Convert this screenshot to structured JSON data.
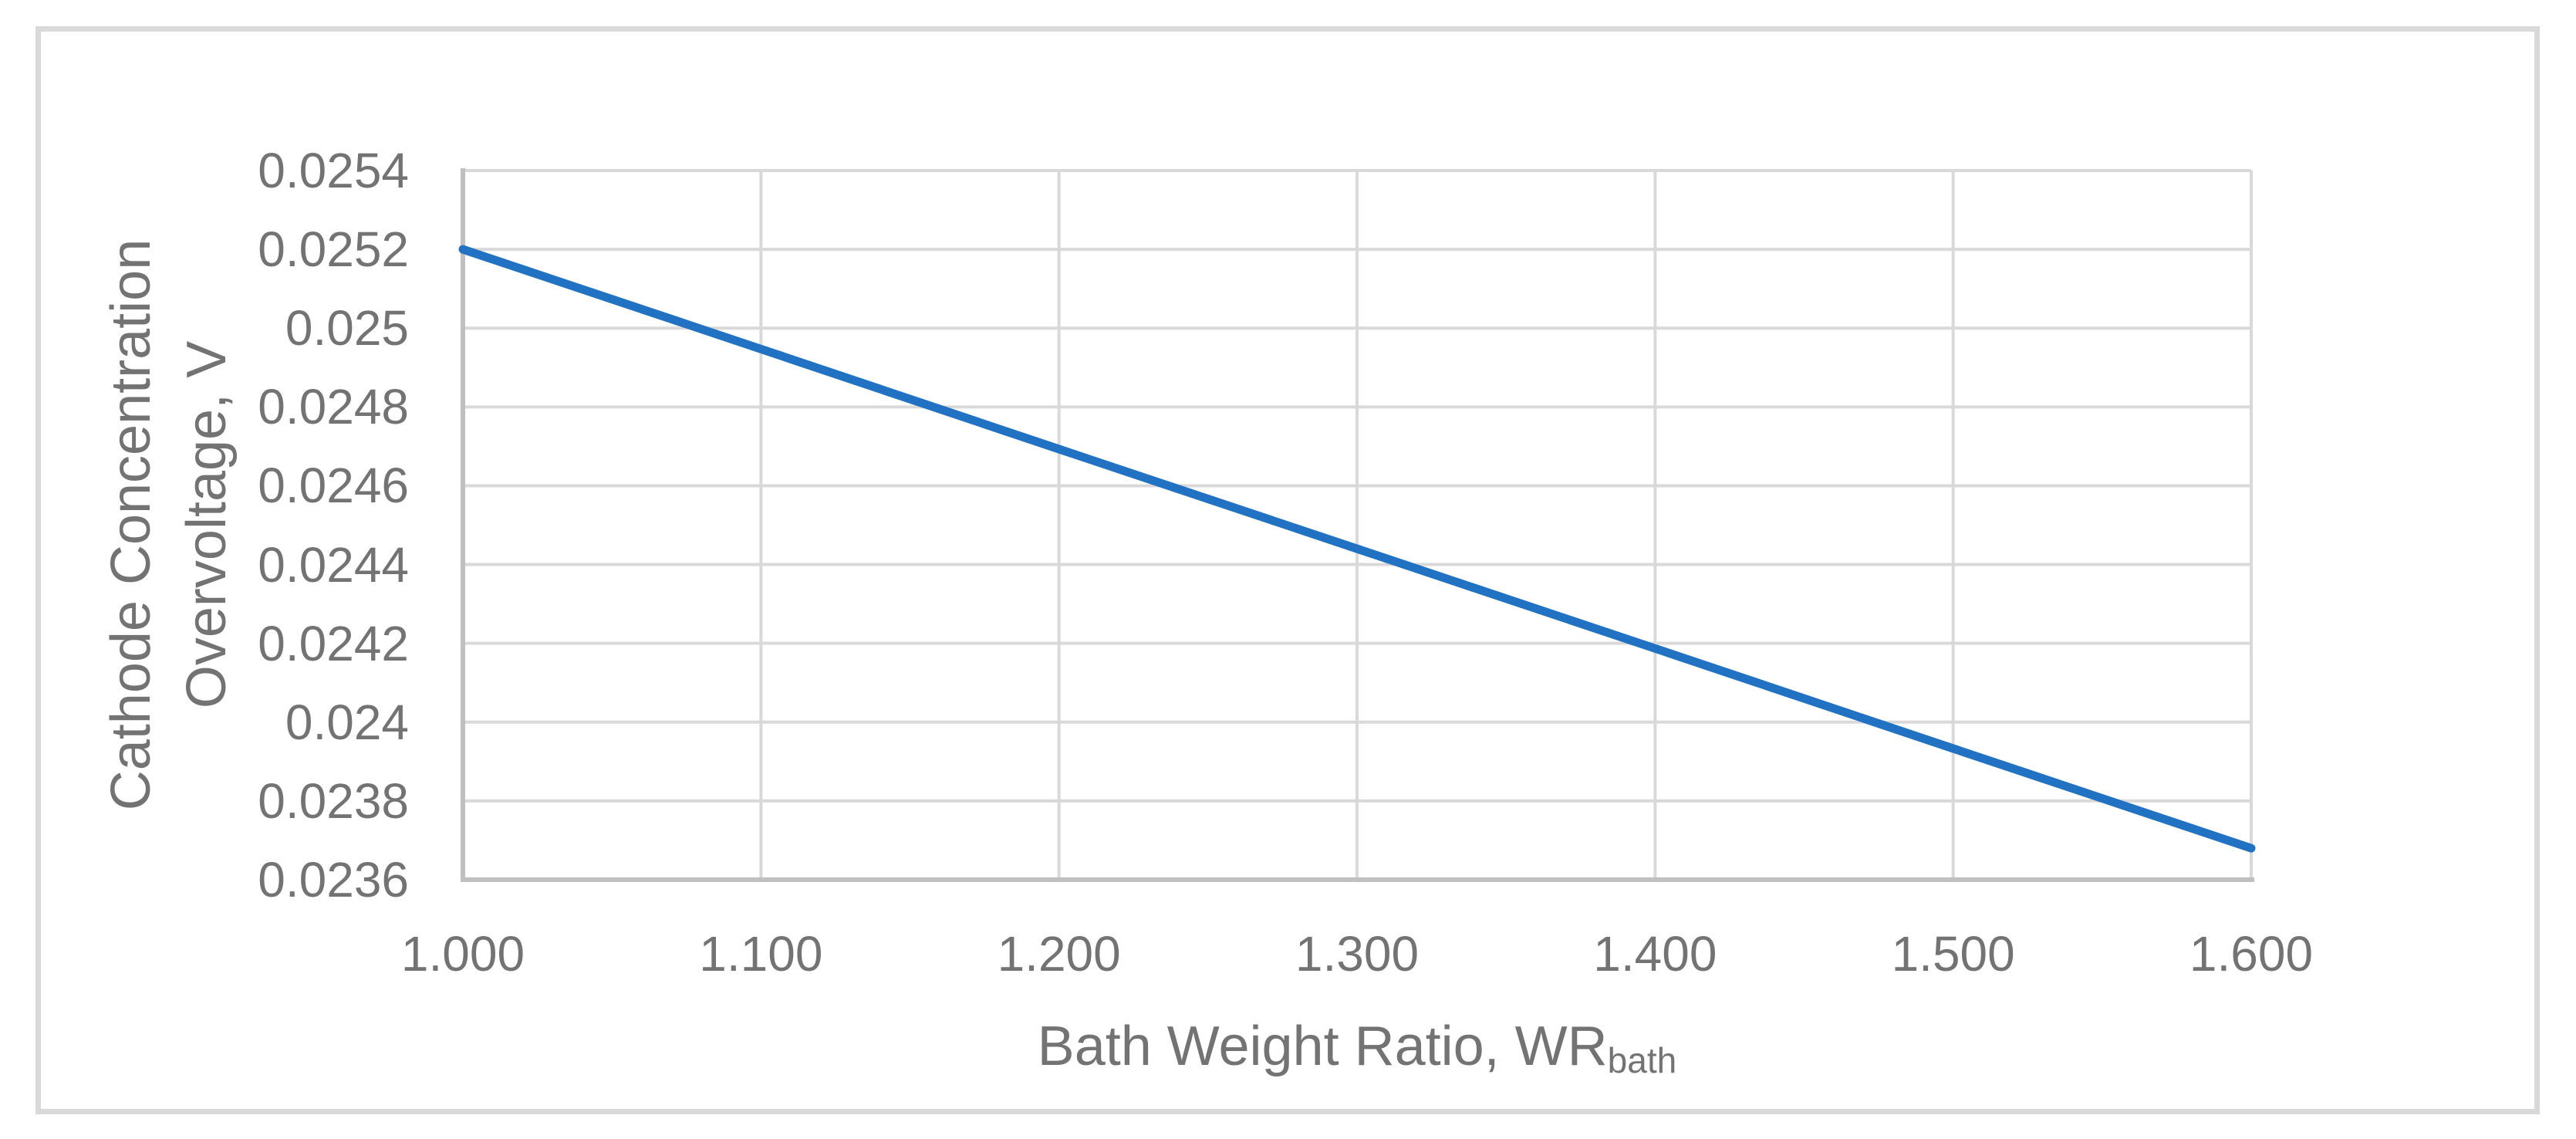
{
  "chart_data": {
    "type": "line",
    "title": "",
    "xlabel_main": "Bath Weight Ratio, WR",
    "xlabel_sub": "bath",
    "ylabel_line1": "Cathode Concentration",
    "ylabel_line2": "Overvoltage, V",
    "x": [
      1.0,
      1.1,
      1.2,
      1.3,
      1.4,
      1.5,
      1.6
    ],
    "y": [
      0.0252,
      0.024947,
      0.024693,
      0.02444,
      0.024187,
      0.023933,
      0.02368
    ],
    "xlim": [
      1.0,
      1.6
    ],
    "ylim": [
      0.0236,
      0.0254
    ],
    "xtick_labels": [
      "1.000",
      "1.100",
      "1.200",
      "1.300",
      "1.400",
      "1.500",
      "1.600"
    ],
    "ytick_labels": [
      "0.0254",
      "0.0252",
      "0.025",
      "0.0248",
      "0.0246",
      "0.0244",
      "0.0242",
      "0.024",
      "0.0238",
      "0.0236"
    ],
    "grid": true,
    "legend": false,
    "colors": {
      "line": "#2272C4",
      "gridline": "#D9D9D9",
      "axis": "#C0C0C0",
      "frame_border": "#D9D9D9",
      "text": "#737373",
      "background": "#FFFFFF"
    }
  }
}
